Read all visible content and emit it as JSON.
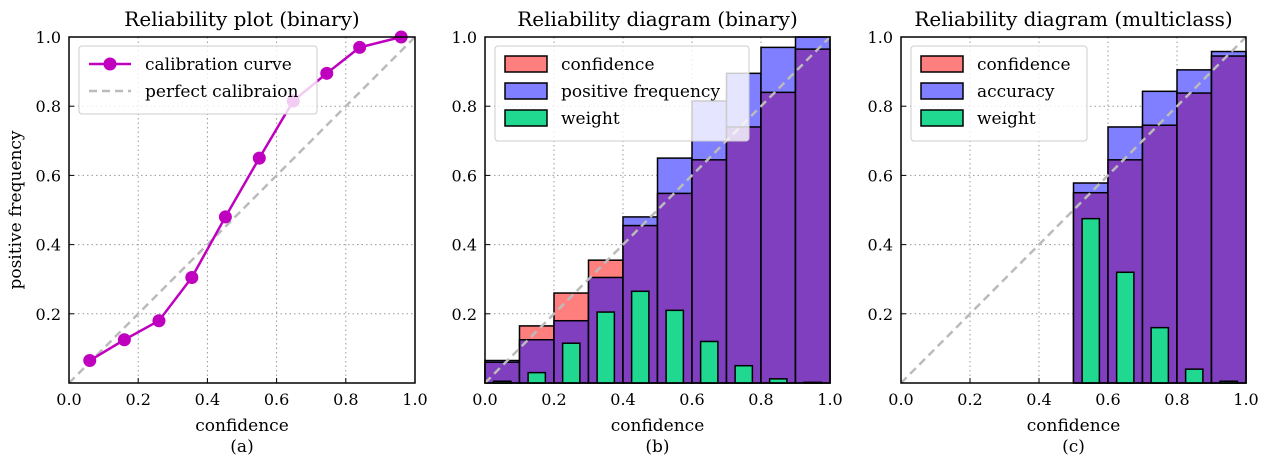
{
  "chart_data": [
    {
      "type": "line",
      "title": "Reliability plot (binary)",
      "xlabel": "confidence",
      "ylabel": "positive frequency",
      "caption": "(a)",
      "xlim": [
        0,
        1
      ],
      "ylim": [
        0,
        1
      ],
      "xticks": [
        "0.0",
        "0.2",
        "0.4",
        "0.6",
        "0.8",
        "1.0"
      ],
      "yticks": [
        "0.2",
        "0.4",
        "0.6",
        "0.8",
        "1.0"
      ],
      "grid": true,
      "legend_position": "top-left",
      "legend": [
        "calibration curve",
        "perfect calibraion"
      ],
      "series": [
        {
          "name": "calibration curve",
          "color": "#bf00bf",
          "x": [
            0.06,
            0.16,
            0.26,
            0.355,
            0.452,
            0.55,
            0.648,
            0.745,
            0.84,
            0.96
          ],
          "y": [
            0.065,
            0.125,
            0.18,
            0.305,
            0.48,
            0.65,
            0.815,
            0.895,
            0.97,
            1.0
          ]
        },
        {
          "name": "perfect calibraion",
          "color": "#bbbbbb",
          "x": [
            0,
            1
          ],
          "y": [
            0,
            1
          ]
        }
      ]
    },
    {
      "type": "bar",
      "title": "Reliability diagram (binary)",
      "xlabel": "confidence",
      "caption": "(b)",
      "xlim": [
        0,
        1
      ],
      "ylim": [
        0,
        1
      ],
      "xticks": [
        "0.0",
        "0.2",
        "0.4",
        "0.6",
        "0.8",
        "1.0"
      ],
      "yticks": [
        "0.2",
        "0.4",
        "0.6",
        "0.8",
        "1.0"
      ],
      "grid": true,
      "legend_position": "top-left",
      "legend": [
        "confidence",
        "positive frequency",
        "weight"
      ],
      "colors": {
        "confidence": "#ff7f7f",
        "frequency": "#7f7fff",
        "overlap": "#7f3fbf",
        "weight": "#20d890"
      },
      "bin_edges": [
        0,
        0.1,
        0.2,
        0.3,
        0.4,
        0.5,
        0.6,
        0.7,
        0.8,
        0.9,
        1.0
      ],
      "confidence": [
        0.06,
        0.165,
        0.26,
        0.355,
        0.455,
        0.548,
        0.645,
        0.74,
        0.84,
        0.965
      ],
      "frequency": [
        0.065,
        0.125,
        0.18,
        0.305,
        0.48,
        0.65,
        0.815,
        0.895,
        0.97,
        1.0
      ],
      "weight": [
        0.005,
        0.03,
        0.115,
        0.205,
        0.265,
        0.21,
        0.12,
        0.05,
        0.012,
        0.002
      ]
    },
    {
      "type": "bar",
      "title": "Reliability diagram (multiclass)",
      "xlabel": "confidence",
      "caption": "(c)",
      "xlim": [
        0,
        1
      ],
      "ylim": [
        0,
        1
      ],
      "xticks": [
        "0.0",
        "0.2",
        "0.4",
        "0.6",
        "0.8",
        "1.0"
      ],
      "yticks": [
        "0.2",
        "0.4",
        "0.6",
        "0.8",
        "1.0"
      ],
      "grid": true,
      "legend_position": "top-left",
      "legend": [
        "confidence",
        "accuracy",
        "weight"
      ],
      "colors": {
        "confidence": "#ff7f7f",
        "frequency": "#7f7fff",
        "overlap": "#7f3fbf",
        "weight": "#20d890"
      },
      "bin_edges": [
        0,
        0.1,
        0.2,
        0.3,
        0.4,
        0.5,
        0.6,
        0.7,
        0.8,
        0.9,
        1.0
      ],
      "confidence": [
        0,
        0,
        0,
        0,
        0,
        0.55,
        0.645,
        0.745,
        0.838,
        0.945
      ],
      "frequency": [
        0,
        0,
        0,
        0,
        0,
        0.578,
        0.74,
        0.843,
        0.905,
        0.958
      ],
      "weight": [
        0,
        0,
        0,
        0,
        0,
        0.475,
        0.32,
        0.16,
        0.04,
        0.005
      ]
    }
  ]
}
